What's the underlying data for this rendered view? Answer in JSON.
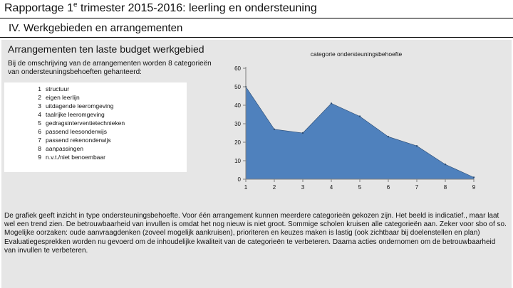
{
  "header": {
    "title_prefix": "Rapportage 1",
    "title_sup": "e",
    "title_suffix": " trimester 2015-2016: leerling en ondersteuning",
    "subtitle": "IV. Werkgebieden en arrangementen"
  },
  "panel": {
    "title": "Arrangementen ten laste budget werkgebied",
    "intro": "Bij de omschrijving van de arrangementen worden 8 categorieën van ondersteuningsbehoeften gehanteerd:"
  },
  "legend": [
    {
      "num": "1",
      "label": "structuur"
    },
    {
      "num": "2",
      "label": "eigen leerlijn"
    },
    {
      "num": "3",
      "label": "uitdagende leeromgeving"
    },
    {
      "num": "4",
      "label": "taalrijke leeromgeving"
    },
    {
      "num": "5",
      "label": "gedragsinterventietechnieken"
    },
    {
      "num": "6",
      "label": "passend leesonderwijs"
    },
    {
      "num": "7",
      "label": "passend rekenonderwijs"
    },
    {
      "num": "8",
      "label": "aanpassingen"
    },
    {
      "num": "9",
      "label": "n.v.t./niet benoembaar"
    }
  ],
  "chart_data": {
    "type": "area",
    "title": "categorie ondersteuningsbehoefte",
    "xlabel": "",
    "ylabel": "",
    "x": [
      1,
      2,
      3,
      4,
      5,
      6,
      7,
      8,
      9
    ],
    "values": [
      50,
      27,
      25,
      41,
      34,
      23,
      18,
      8,
      1
    ],
    "ylim": [
      0,
      60
    ],
    "yticks": [
      0,
      10,
      20,
      30,
      40,
      50,
      60
    ],
    "grid": false,
    "legend": "none",
    "fill_color": "#4f81bd",
    "stroke_color": "#2c4d75"
  },
  "body": {
    "p1": "De grafiek geeft inzicht in type ondersteuningsbehoefte. Voor één arrangement kunnen meerdere categorieën gekozen zijn. Het beeld is indicatief., maar laat wel een trend zien. De betrouwbaarheid van invullen is omdat het nog nieuw is niet groot. Sommige scholen kruisen alle categorieën aan. Zeker voor sbo of so.",
    "p2": "Mogelijke oorzaken: oude aanvraagdenken (zoveel mogelijk aankruisen), prioriteren en keuzes maken is lastig (ook zichtbaar bij doelenstellen en plan)",
    "p3": "Evaluatiegesprekken worden nu gevoerd om de inhoudelijke kwaliteit van de categorieën te verbeteren. Daarna acties ondernomen om de betrouwbaarheid van invullen te verbeteren."
  }
}
